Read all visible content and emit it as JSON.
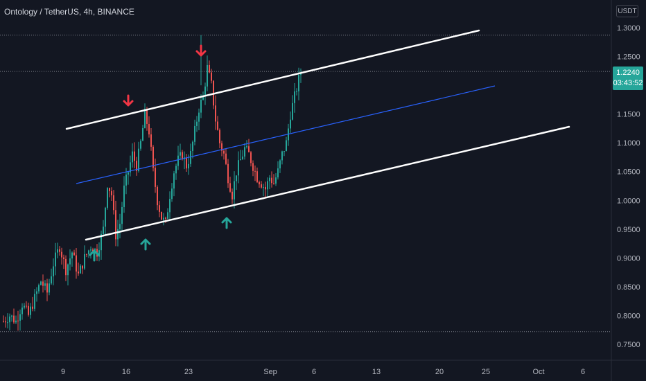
{
  "header": {
    "title": "Ontology / TetherUS, 4h, BINANCE",
    "unit": "USDT"
  },
  "price_tag": {
    "price": "1.2240",
    "countdown": "03:43:52"
  },
  "colors": {
    "background": "#131722",
    "up": "#26a69a",
    "down": "#ef5350",
    "channel": "#ffffff",
    "midline": "#2962ff",
    "arrow_up": "#26a69a",
    "arrow_down": "#f23645"
  },
  "chart_data": {
    "type": "candlestick",
    "title": "Ontology / TetherUS, 4h, BINANCE",
    "y_axis": {
      "ticks": [
        "1.3000",
        "1.2500",
        "1.2000",
        "1.1500",
        "1.1000",
        "1.0500",
        "1.0000",
        "0.9500",
        "0.9000",
        "0.8500",
        "0.8000",
        "0.7500"
      ],
      "range": [
        0.735,
        1.315
      ],
      "side": "right"
    },
    "x_axis": {
      "ticks": [
        "9",
        "16",
        "23",
        "Sep",
        "6",
        "13",
        "20",
        "25",
        "Oct",
        "6"
      ]
    },
    "price_path": [
      [
        0.79,
        0
      ],
      [
        0.8,
        3
      ],
      [
        0.79,
        6
      ],
      [
        0.82,
        9
      ],
      [
        0.8,
        12
      ],
      [
        0.83,
        15
      ],
      [
        0.86,
        18
      ],
      [
        0.84,
        21
      ],
      [
        0.89,
        24
      ],
      [
        0.92,
        27
      ],
      [
        0.88,
        30
      ],
      [
        0.91,
        33
      ],
      [
        0.87,
        36
      ],
      [
        0.9,
        39
      ],
      [
        0.92,
        42
      ],
      [
        0.91,
        45
      ],
      [
        0.95,
        48
      ],
      [
        1.03,
        50
      ],
      [
        1.01,
        52
      ],
      [
        0.94,
        54
      ],
      [
        0.96,
        56
      ],
      [
        1.02,
        58
      ],
      [
        1.05,
        60
      ],
      [
        1.08,
        62
      ],
      [
        1.06,
        64
      ],
      [
        1.1,
        66
      ],
      [
        1.15,
        68
      ],
      [
        1.12,
        70
      ],
      [
        1.05,
        72
      ],
      [
        1.0,
        74
      ],
      [
        0.97,
        76
      ],
      [
        0.96,
        78
      ],
      [
        1.01,
        80
      ],
      [
        1.05,
        82
      ],
      [
        1.07,
        84
      ],
      [
        1.08,
        86
      ],
      [
        1.06,
        88
      ],
      [
        1.08,
        90
      ],
      [
        1.12,
        92
      ],
      [
        1.16,
        94
      ],
      [
        1.18,
        96
      ],
      [
        1.23,
        98
      ],
      [
        1.2,
        100
      ],
      [
        1.14,
        102
      ],
      [
        1.1,
        104
      ],
      [
        1.08,
        106
      ],
      [
        1.04,
        108
      ],
      [
        1.01,
        110
      ],
      [
        1.05,
        112
      ],
      [
        1.07,
        114
      ],
      [
        1.09,
        116
      ],
      [
        1.08,
        118
      ],
      [
        1.06,
        120
      ],
      [
        1.04,
        122
      ],
      [
        1.03,
        124
      ],
      [
        1.02,
        126
      ],
      [
        1.04,
        128
      ],
      [
        1.03,
        130
      ],
      [
        1.05,
        132
      ],
      [
        1.08,
        134
      ],
      [
        1.1,
        136
      ],
      [
        1.15,
        138
      ],
      [
        1.18,
        140
      ],
      [
        1.21,
        142
      ],
      [
        1.224,
        143
      ]
    ],
    "annotations": {
      "channel_upper": [
        [
          1.123,
          12
        ],
        [
          1.295,
          93
        ]
      ],
      "channel_lower": [
        [
          0.933,
          17
        ],
        [
          1.128,
          110
        ]
      ],
      "midline": [
        [
          1.03,
          15
        ],
        [
          1.199,
          96
        ]
      ],
      "down_arrows": [
        [
          1.17,
          24
        ],
        [
          1.27,
          38
        ]
      ],
      "up_arrows": [
        [
          0.895,
          18
        ],
        [
          0.927,
          28
        ],
        [
          0.958,
          43
        ]
      ],
      "horizontal_lines": [
        "1.2870",
        "1.2240",
        "0.7720"
      ]
    }
  }
}
